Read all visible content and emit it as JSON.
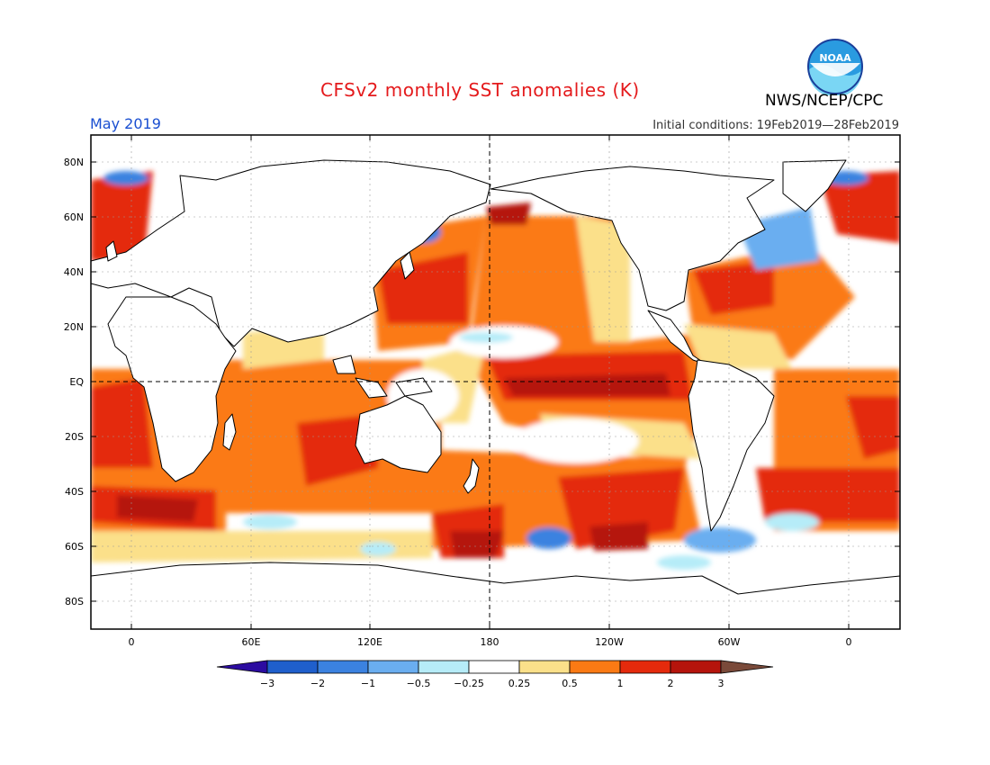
{
  "header": {
    "title": "CFSv2 monthly SST anomalies (K)",
    "organization": "NWS/NCEP/CPC",
    "logo_text": "NOAA",
    "month": "May 2019",
    "initial_conditions": "Initial conditions: 19Feb2019—28Feb2019"
  },
  "axes": {
    "lat_labels": [
      "80N",
      "60N",
      "40N",
      "20N",
      "EQ",
      "20S",
      "40S",
      "60S",
      "80S"
    ],
    "lon_labels": [
      "0",
      "60E",
      "120E",
      "180",
      "120W",
      "60W",
      "0"
    ]
  },
  "colorbar": {
    "labels": [
      "−3",
      "−2",
      "−1",
      "−0.5",
      "−0.25",
      "0.25",
      "0.5",
      "1",
      "2",
      "3"
    ],
    "colors": [
      "#2c0ca0",
      "#1f5fcc",
      "#3b82e0",
      "#6aaef0",
      "#b6ecf8",
      "#ffffff",
      "#fbe08a",
      "#fb7a14",
      "#e42a0c",
      "#b5140c",
      "#7a4a3a"
    ]
  }
}
